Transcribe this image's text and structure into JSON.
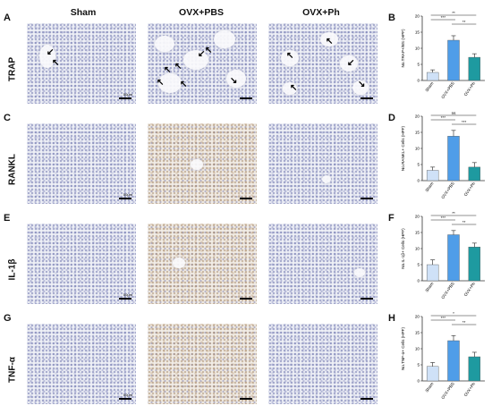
{
  "column_headers": [
    "Sham",
    "OVX+PBS",
    "OVX+Ph"
  ],
  "rows": [
    {
      "letter": "A",
      "chart_letter": "B",
      "label": "TRAP",
      "scale_text": "50μm"
    },
    {
      "letter": "C",
      "chart_letter": "D",
      "label": "RANKL",
      "scale_text": "50μm"
    },
    {
      "letter": "E",
      "chart_letter": "F",
      "label": "IL-1β",
      "scale_text": "50μm"
    },
    {
      "letter": "G",
      "chart_letter": "H",
      "label": "TNF-α",
      "scale_text": "50μm"
    }
  ],
  "colors": {
    "sham": "#cfe1f7",
    "ovx_pbs": "#4f9de8",
    "ovx_ph": "#1e9aa0",
    "axis": "#333333"
  },
  "chart_data": [
    {
      "type": "bar",
      "categories": [
        "Sham",
        "OVX+PBS",
        "OVX+Ph"
      ],
      "values": [
        2.5,
        12.5,
        7.2
      ],
      "errors": [
        0.8,
        1.4,
        1.1
      ],
      "ylabel": "No.TRAP+/BS (HPF)",
      "ylim": [
        0,
        20
      ],
      "yticks": [
        0,
        5,
        10,
        15,
        20
      ],
      "significance": [
        {
          "pair": [
            0,
            2
          ],
          "label": "**"
        },
        {
          "pair": [
            0,
            1
          ],
          "label": "***"
        },
        {
          "pair": [
            1,
            2
          ],
          "label": "**"
        }
      ]
    },
    {
      "type": "bar",
      "categories": [
        "Sham",
        "OVX+PBS",
        "OVX+Ph"
      ],
      "values": [
        3.2,
        13.8,
        4.2
      ],
      "errors": [
        1.0,
        1.8,
        1.4
      ],
      "ylabel": "No.RANKL+ Cells (HPF)",
      "ylim": [
        0,
        20
      ],
      "yticks": [
        0,
        5,
        10,
        15,
        20
      ],
      "significance": [
        {
          "pair": [
            0,
            2
          ],
          "label": "ns"
        },
        {
          "pair": [
            0,
            1
          ],
          "label": "***"
        },
        {
          "pair": [
            1,
            2
          ],
          "label": "***"
        }
      ]
    },
    {
      "type": "bar",
      "categories": [
        "Sham",
        "OVX+PBS",
        "OVX+Ph"
      ],
      "values": [
        5.0,
        14.3,
        10.5
      ],
      "errors": [
        1.5,
        1.3,
        1.2
      ],
      "ylabel": "No.IL-1β+ Cells (HPF)",
      "ylim": [
        0,
        20
      ],
      "yticks": [
        0,
        5,
        10,
        15,
        20
      ],
      "significance": [
        {
          "pair": [
            0,
            2
          ],
          "label": "**"
        },
        {
          "pair": [
            0,
            1
          ],
          "label": "***"
        },
        {
          "pair": [
            1,
            2
          ],
          "label": "**"
        }
      ]
    },
    {
      "type": "bar",
      "categories": [
        "Sham",
        "OVX+PBS",
        "OVX+Ph"
      ],
      "values": [
        4.5,
        12.5,
        7.5
      ],
      "errors": [
        1.2,
        1.6,
        1.4
      ],
      "ylabel": "No.TNF-α+ Cells (HPF)",
      "ylim": [
        0,
        20
      ],
      "yticks": [
        0,
        5,
        10,
        15,
        20
      ],
      "significance": [
        {
          "pair": [
            0,
            2
          ],
          "label": "*"
        },
        {
          "pair": [
            0,
            1
          ],
          "label": "***"
        },
        {
          "pair": [
            1,
            2
          ],
          "label": "**"
        }
      ]
    }
  ]
}
